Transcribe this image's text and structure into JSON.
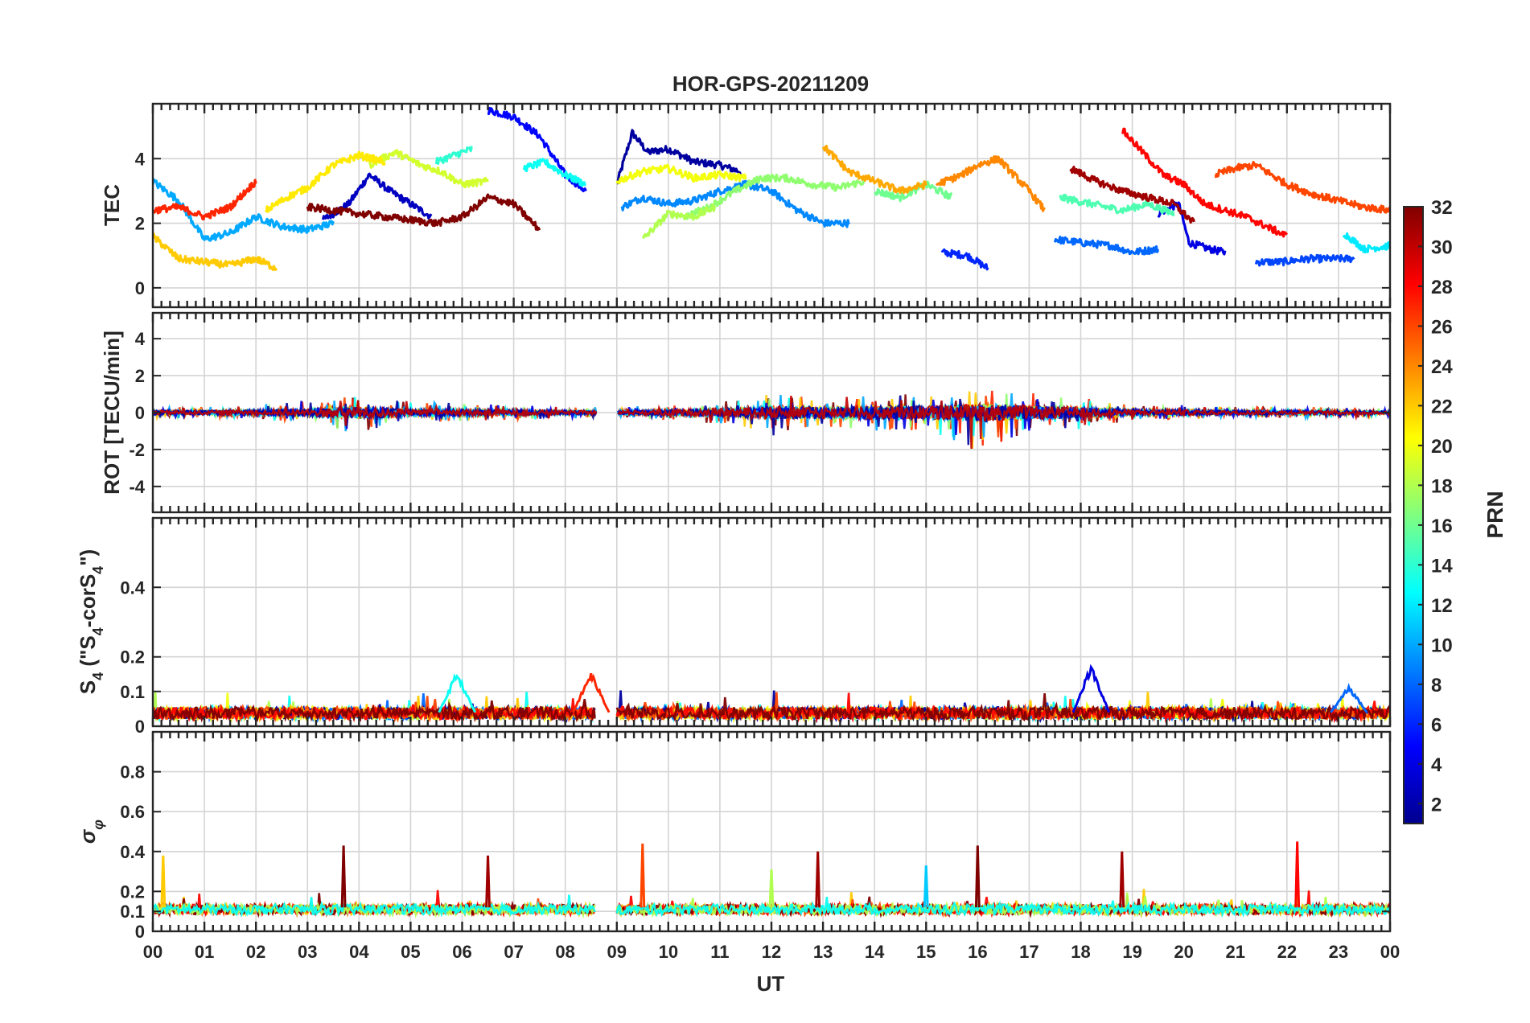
{
  "title": "HOR-GPS-20211209",
  "xlabel": "UT",
  "x_ticks": [
    "00",
    "01",
    "02",
    "03",
    "04",
    "05",
    "06",
    "07",
    "08",
    "09",
    "10",
    "11",
    "12",
    "13",
    "14",
    "15",
    "16",
    "17",
    "18",
    "19",
    "20",
    "21",
    "22",
    "23",
    "00"
  ],
  "colorbar": {
    "label": "PRN",
    "range": [
      1,
      32
    ],
    "ticks": [
      "2",
      "4",
      "6",
      "8",
      "10",
      "12",
      "14",
      "16",
      "18",
      "20",
      "22",
      "24",
      "26",
      "28",
      "30",
      "32"
    ],
    "colormap": "jet"
  },
  "chart_data": [
    {
      "type": "line",
      "panel": "tec",
      "ylabel": "TEC",
      "xlim": [
        0,
        24
      ],
      "ylim": [
        -0.6,
        5.7
      ],
      "y_ticks": [
        "0",
        "2",
        "4"
      ],
      "grid": true,
      "data_gap_hours": [
        8.6,
        9.0
      ],
      "series": [
        {
          "prn": 2,
          "x": [
            9.0,
            9.3,
            9.6,
            10.0,
            10.5,
            11.0,
            11.4
          ],
          "y": [
            3.2,
            4.8,
            4.2,
            4.3,
            3.9,
            3.8,
            3.6
          ]
        },
        {
          "prn": 3,
          "x": [
            3.3,
            3.8,
            4.2,
            4.6,
            5.0,
            5.4
          ],
          "y": [
            2.1,
            2.6,
            3.5,
            3.0,
            2.6,
            2.2
          ]
        },
        {
          "prn": 4,
          "x": [
            19.5,
            19.9,
            20.1,
            20.5,
            20.8
          ],
          "y": [
            2.3,
            2.6,
            1.4,
            1.2,
            1.1
          ]
        },
        {
          "prn": 5,
          "x": [
            6.5,
            7.0,
            7.5,
            8.0,
            8.4
          ],
          "y": [
            5.5,
            5.3,
            4.7,
            3.5,
            3.0
          ]
        },
        {
          "prn": 6,
          "x": [
            15.3,
            15.8,
            16.2
          ],
          "y": [
            1.1,
            1.0,
            0.6
          ]
        },
        {
          "prn": 7,
          "x": [
            21.4,
            21.9,
            22.4,
            22.9,
            23.3
          ],
          "y": [
            0.8,
            0.8,
            0.9,
            0.9,
            0.9
          ]
        },
        {
          "prn": 8,
          "x": [
            17.5,
            18.0,
            18.6,
            19.0,
            19.5
          ],
          "y": [
            1.5,
            1.4,
            1.3,
            1.1,
            1.2
          ]
        },
        {
          "prn": 9,
          "x": [
            9.1,
            9.5,
            10.0,
            10.5,
            11.0,
            11.5,
            12.0,
            12.5,
            13.0,
            13.5
          ],
          "y": [
            2.5,
            2.8,
            2.6,
            2.7,
            3.0,
            3.2,
            3.0,
            2.4,
            2.0,
            2.0
          ]
        },
        {
          "prn": 10,
          "x": [
            0.0,
            0.5,
            1.0,
            1.5,
            2.0,
            2.5,
            3.0,
            3.5
          ],
          "y": [
            3.3,
            2.7,
            1.5,
            1.7,
            2.2,
            1.9,
            1.8,
            2.0
          ]
        },
        {
          "prn": 12,
          "x": [
            23.1,
            23.5,
            24.0
          ],
          "y": [
            1.7,
            1.2,
            1.3
          ]
        },
        {
          "prn": 13,
          "x": [
            7.2,
            7.6,
            8.0,
            8.4
          ],
          "y": [
            3.7,
            3.9,
            3.5,
            3.2
          ]
        },
        {
          "prn": 14,
          "x": [
            5.5,
            6.0,
            6.2
          ],
          "y": [
            3.9,
            4.2,
            4.3
          ]
        },
        {
          "prn": 15,
          "x": [
            17.6,
            18.2,
            18.8,
            19.3,
            19.8
          ],
          "y": [
            2.8,
            2.6,
            2.4,
            2.6,
            2.3
          ]
        },
        {
          "prn": 16,
          "x": [
            14.0,
            14.5,
            15.0,
            15.5
          ],
          "y": [
            3.0,
            2.8,
            3.2,
            2.8
          ]
        },
        {
          "prn": 17,
          "x": [
            10.3,
            10.8,
            11.3,
            11.8,
            12.3,
            12.8,
            13.3,
            13.8
          ],
          "y": [
            2.2,
            2.5,
            3.0,
            3.4,
            3.4,
            3.2,
            3.1,
            3.3
          ]
        },
        {
          "prn": 18,
          "x": [
            9.5,
            10.0,
            10.5,
            10.9
          ],
          "y": [
            1.5,
            2.3,
            2.2,
            2.5
          ]
        },
        {
          "prn": 19,
          "x": [
            4.2,
            4.7,
            5.2,
            5.6,
            6.0,
            6.5
          ],
          "y": [
            3.8,
            4.2,
            3.8,
            3.6,
            3.2,
            3.3
          ]
        },
        {
          "prn": 20,
          "x": [
            9.0,
            9.5,
            10.0,
            10.5,
            11.0,
            11.5
          ],
          "y": [
            3.3,
            3.6,
            3.7,
            3.4,
            3.5,
            3.4
          ]
        },
        {
          "prn": 21,
          "x": [
            2.2,
            2.6,
            3.0,
            3.5,
            4.0,
            4.5
          ],
          "y": [
            2.4,
            2.8,
            3.1,
            3.8,
            4.1,
            3.9
          ]
        },
        {
          "prn": 22,
          "x": [
            0.0,
            0.5,
            1.0,
            1.5,
            2.0,
            2.4
          ],
          "y": [
            1.6,
            0.9,
            0.8,
            0.7,
            0.9,
            0.6
          ]
        },
        {
          "prn": 23,
          "x": [
            13.0,
            13.5,
            14.0,
            14.5,
            15.0
          ],
          "y": [
            4.4,
            3.6,
            3.3,
            3.0,
            3.2
          ]
        },
        {
          "prn": 24,
          "x": [
            15.2,
            15.7,
            16.0,
            16.4,
            17.0,
            17.3
          ],
          "y": [
            3.2,
            3.5,
            3.8,
            4.0,
            3.0,
            2.4
          ]
        },
        {
          "prn": 26,
          "x": [
            20.6,
            21.0,
            21.4,
            22.0,
            22.5,
            23.0,
            23.5,
            24.0
          ],
          "y": [
            3.5,
            3.7,
            3.8,
            3.2,
            2.9,
            2.7,
            2.5,
            2.4
          ]
        },
        {
          "prn": 27,
          "x": [
            0.0,
            0.5,
            1.0,
            1.5,
            2.0
          ],
          "y": [
            2.4,
            2.5,
            2.2,
            2.5,
            3.3
          ]
        },
        {
          "prn": 28,
          "x": [
            18.8,
            19.2,
            19.6,
            20.0,
            20.4,
            20.8,
            21.2,
            21.6,
            22.0
          ],
          "y": [
            4.9,
            4.2,
            3.5,
            3.2,
            2.6,
            2.4,
            2.2,
            1.9,
            1.6
          ]
        },
        {
          "prn": 31,
          "x": [
            17.8,
            18.3,
            18.8,
            19.3,
            19.8,
            20.2
          ],
          "y": [
            3.7,
            3.3,
            3.0,
            2.8,
            2.6,
            2.0
          ]
        },
        {
          "prn": 32,
          "x": [
            3.0,
            3.5,
            4.0,
            4.5,
            5.0,
            5.5,
            6.0,
            6.5,
            7.0,
            7.5
          ],
          "y": [
            2.5,
            2.4,
            2.3,
            2.2,
            2.1,
            2.0,
            2.2,
            2.8,
            2.6,
            1.8
          ]
        }
      ]
    },
    {
      "type": "line",
      "panel": "rot",
      "ylabel": "ROT [TECU/min]",
      "xlim": [
        0,
        24
      ],
      "ylim": [
        -5.4,
        5.4
      ],
      "y_ticks": [
        "-4",
        "-2",
        "0",
        "2",
        "4"
      ],
      "grid": true,
      "envelope_hours": [
        0,
        1,
        2,
        3,
        4,
        5,
        6,
        7,
        8,
        9,
        10,
        11,
        12,
        13,
        14,
        15,
        16,
        17,
        18,
        19,
        20,
        21,
        22,
        23,
        24
      ],
      "envelope_max": [
        0.3,
        0.3,
        0.4,
        0.7,
        0.9,
        0.6,
        0.5,
        0.4,
        0.3,
        0.3,
        0.4,
        0.6,
        1.0,
        0.9,
        1.0,
        1.0,
        1.4,
        1.1,
        0.8,
        0.4,
        0.4,
        0.3,
        0.3,
        0.3,
        0.2
      ],
      "envelope_min": [
        -0.3,
        -0.3,
        -0.4,
        -0.5,
        -1.2,
        -0.5,
        -0.5,
        -0.4,
        -0.3,
        -0.3,
        -0.4,
        -0.6,
        -1.3,
        -0.9,
        -1.0,
        -1.0,
        -2.1,
        -1.0,
        -0.9,
        -0.4,
        -0.4,
        -0.3,
        -0.3,
        -0.3,
        -0.2
      ]
    },
    {
      "type": "line",
      "panel": "s4",
      "ylabel": "S4 (\"S4-corS4\")",
      "ylabel_main": "S",
      "ylabel_rest": " (\"S",
      "ylabel_mid": "-corS",
      "ylabel_end": "\")",
      "ylabel_sub": "4",
      "xlim": [
        0,
        24
      ],
      "ylim": [
        0,
        0.6
      ],
      "y_ticks": [
        "0",
        "0.1",
        "0.2",
        "0.4"
      ],
      "grid": true,
      "peaks": [
        {
          "prn": 13,
          "x": 5.9,
          "y": 0.16
        },
        {
          "prn": 27,
          "x": 8.5,
          "y": 0.16
        },
        {
          "prn": 4,
          "x": 18.2,
          "y": 0.18
        },
        {
          "prn": 8,
          "x": 23.2,
          "y": 0.12
        }
      ]
    },
    {
      "type": "line",
      "panel": "sigma_phi",
      "ylabel": "σ φ",
      "ylabel_main": "σ",
      "ylabel_sub": "φ",
      "xlim": [
        0,
        24
      ],
      "ylim": [
        0,
        1.0
      ],
      "y_ticks": [
        "0",
        "0.1",
        "0.2",
        "0.4",
        "0.6",
        "0.8"
      ],
      "grid": true,
      "spikes": [
        {
          "prn": 22,
          "x": 0.2,
          "y": 0.38
        },
        {
          "prn": 32,
          "x": 3.7,
          "y": 0.43
        },
        {
          "prn": 31,
          "x": 6.5,
          "y": 0.38
        },
        {
          "prn": 26,
          "x": 9.5,
          "y": 0.44
        },
        {
          "prn": 18,
          "x": 12.0,
          "y": 0.31
        },
        {
          "prn": 31,
          "x": 12.9,
          "y": 0.4
        },
        {
          "prn": 11,
          "x": 15.0,
          "y": 0.33
        },
        {
          "prn": 32,
          "x": 16.0,
          "y": 0.43
        },
        {
          "prn": 31,
          "x": 18.8,
          "y": 0.4
        },
        {
          "prn": 28,
          "x": 22.2,
          "y": 0.45
        }
      ]
    }
  ]
}
